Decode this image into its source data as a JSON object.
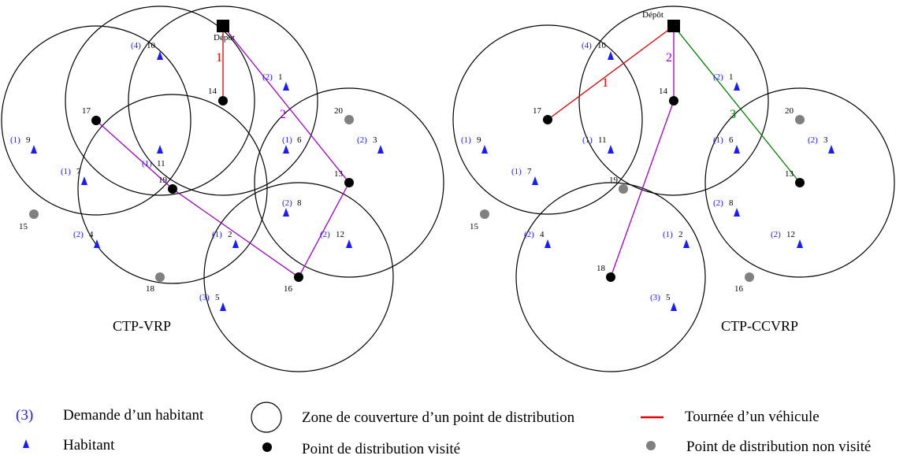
{
  "colors": {
    "demand": "#1a1aff",
    "habitant": "#1a1aff",
    "visited": "#000000",
    "unvisited": "#808080",
    "route_left": "#a000c8",
    "route1_right": "#e00000",
    "route2_right": "#a000c8",
    "route3_right": "#008000",
    "circle": "#000000"
  },
  "depot_label": "Dépôt",
  "panels": [
    {
      "title": "CTP-VRP",
      "route_labels": [
        "1",
        "2"
      ],
      "demands": {
        "d1": "(2)",
        "d2": "(1)",
        "d3": "(2)",
        "d4": "(2)",
        "d5": "(3)",
        "d6": "(1)",
        "d7": "(1)",
        "d8": "(2)",
        "d9": "(1)",
        "d10": "(4)",
        "d11": "(1)",
        "d12": "(2)"
      },
      "ids": {
        "n1": "1",
        "n2": "2",
        "n3": "3",
        "n4": "4",
        "n5": "5",
        "n6": "6",
        "n7": "7",
        "n8": "8",
        "n9": "9",
        "n10": "10",
        "n11": "11",
        "n12": "12",
        "n13": "13",
        "n14": "14",
        "n15": "15",
        "n16": "16",
        "n17": "17",
        "n18": "18",
        "n19": "19",
        "n20": "20"
      }
    },
    {
      "title": "CTP-CCVRP",
      "route_labels": [
        "1",
        "2",
        "3"
      ],
      "demands": {
        "d1": "(2)",
        "d2": "(1)",
        "d3": "(2)",
        "d4": "(2)",
        "d5": "(3)",
        "d6": "(1)",
        "d7": "(1)",
        "d8": "(2)",
        "d9": "(1)",
        "d10": "(4)",
        "d11": "(1)",
        "d12": "(2)"
      },
      "ids": {
        "n1": "1",
        "n2": "2",
        "n3": "3",
        "n4": "4",
        "n5": "5",
        "n6": "6",
        "n7": "7",
        "n8": "8",
        "n9": "9",
        "n10": "10",
        "n11": "11",
        "n12": "12",
        "n13": "13",
        "n14": "14",
        "n15": "15",
        "n16": "16",
        "n17": "17",
        "n18": "18",
        "n19": "19",
        "n20": "20"
      }
    }
  ],
  "legend": {
    "demand_symbol": "(3)",
    "demand_text": "Demande d’un habitant",
    "habitant_text": "Habitant",
    "coverage_text": "Zone de couverture d’un point de distribution",
    "visited_text": "Point de distribution visité",
    "route_text": "Tournée d’un véhicule",
    "unvisited_text": "Point de distribution non visité"
  }
}
